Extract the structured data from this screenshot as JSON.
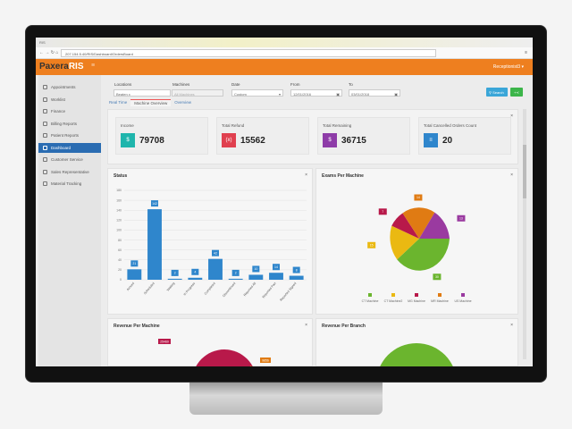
{
  "browser": {
    "tab_title": "RIS",
    "url": "207.154.5.40/RIS/Dashboard/OrdersBoard"
  },
  "header": {
    "logo_a": "Paxera",
    "logo_b": "RIS",
    "user": "Receptionist3"
  },
  "sidebar": {
    "items": [
      {
        "label": "Appointments",
        "icon": "calendar-icon"
      },
      {
        "label": "Worklist",
        "icon": "list-icon"
      },
      {
        "label": "Finance",
        "icon": "exchange-icon"
      },
      {
        "label": "Billing Reports",
        "icon": "document-icon"
      },
      {
        "label": "Patient Reports",
        "icon": "file-icon"
      },
      {
        "label": "Dashboard",
        "icon": "dashboard-icon",
        "active": true
      },
      {
        "label": "Customer Service",
        "icon": "phone-icon"
      },
      {
        "label": "Sales Representative",
        "icon": "exchange-icon"
      },
      {
        "label": "Material Tracking",
        "icon": "user-icon"
      }
    ]
  },
  "filters": {
    "locations_label": "Locations",
    "locations_value": "Beaten x",
    "machines_label": "Machines",
    "machines_placeholder": "All Machines",
    "date_label": "Date",
    "date_value": "Custom",
    "from_label": "From",
    "from_value": "12/01/2016",
    "to_label": "To",
    "to_value": "03/01/2018",
    "search_label": "Search"
  },
  "tabs": [
    "Real Time",
    "Machine Overview",
    "Overview"
  ],
  "cards": [
    {
      "title": "Income",
      "value": "79708",
      "icon": "$",
      "color": "#1fb5ac"
    },
    {
      "title": "Total Refund",
      "value": "15562",
      "icon": "(x)",
      "color": "#e0404f"
    },
    {
      "title": "Total Remaining",
      "value": "36715",
      "icon": "$",
      "color": "#8e3ca8"
    },
    {
      "title": "Total Cancelled Orders Count",
      "value": "20",
      "icon": "≡",
      "color": "#2f86cc"
    }
  ],
  "chart_data": [
    {
      "type": "bar",
      "title": "Status",
      "categories": [
        "Arrived",
        "Scheduled",
        "Waiting",
        "In Progress",
        "Completed",
        "Discontinued",
        "Reported All",
        "Reported Part",
        "Reported Signed"
      ],
      "values": [
        21,
        142,
        2,
        4,
        42,
        2,
        10,
        14,
        8
      ],
      "ylim": [
        0,
        180
      ],
      "yticks": [
        0,
        20,
        40,
        60,
        80,
        100,
        120,
        140,
        160,
        180
      ],
      "color": "#2f86cc",
      "grid": true
    },
    {
      "type": "pie",
      "title": "Exams Per Machine",
      "categories": [
        "CT Machine",
        "CT Machine2",
        "MG Machine",
        "MR Machine",
        "US Machine"
      ],
      "values": [
        30,
        15,
        7,
        14,
        13
      ],
      "colors": [
        "#6bb52e",
        "#eab912",
        "#b8194a",
        "#e07b13",
        "#9a3aa0"
      ],
      "legend": "bottom"
    }
  ],
  "panels": {
    "revenue_machine": "Revenue Per Machine",
    "revenue_branch": "Revenue Per Branch",
    "revenue_label_a": "25460",
    "revenue_label_b": "9856"
  }
}
